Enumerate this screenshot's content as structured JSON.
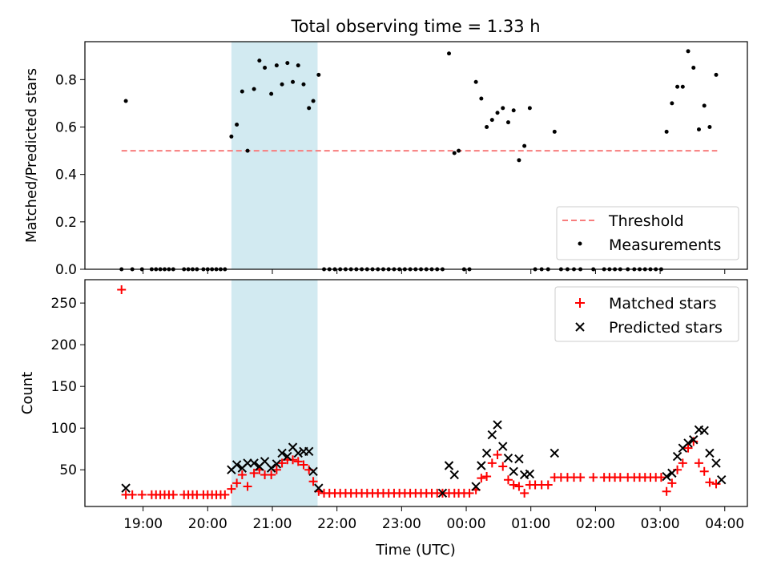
{
  "title": "Total observing time = 1.33 h",
  "colors": {
    "threshold": "#f87d7d",
    "highlight": "#add8e6",
    "measurement": "#000000",
    "matched": "#ff0000",
    "predicted": "#000000"
  },
  "x_ticks": [
    "19:00",
    "20:00",
    "21:00",
    "22:00",
    "23:00",
    "00:00",
    "01:00",
    "02:00",
    "03:00",
    "04:00"
  ],
  "x_tick_hours": [
    19,
    20,
    21,
    22,
    23,
    24,
    25,
    26,
    27,
    28
  ],
  "xlim": [
    18.1,
    28.35
  ],
  "xlabel": "Time (UTC)",
  "highlight_span": {
    "start": "20:22",
    "end": "21:42"
  },
  "chart_data": [
    {
      "type": "scatter",
      "ylabel": "Matched/Predicted stars",
      "ylim": [
        0,
        0.96
      ],
      "yticks": [
        0.0,
        0.2,
        0.4,
        0.6,
        0.8
      ],
      "yticklabels": [
        "0.0",
        "0.2",
        "0.4",
        "0.6",
        "0.8"
      ],
      "legend_position": "lower right",
      "threshold": {
        "name": "Threshold",
        "value": 0.5,
        "x_start": "18:40",
        "x_end": "03:53"
      },
      "series": [
        {
          "name": "Measurements",
          "points": [
            [
              "18:40",
              0.0
            ],
            [
              "18:44",
              0.71
            ],
            [
              "18:50",
              0.0
            ],
            [
              "18:59",
              0.0
            ],
            [
              "19:08",
              0.0
            ],
            [
              "19:12",
              0.0
            ],
            [
              "19:16",
              0.0
            ],
            [
              "19:20",
              0.0
            ],
            [
              "19:24",
              0.0
            ],
            [
              "19:28",
              0.0
            ],
            [
              "19:38",
              0.0
            ],
            [
              "19:42",
              0.0
            ],
            [
              "19:46",
              0.0
            ],
            [
              "19:50",
              0.0
            ],
            [
              "19:56",
              0.0
            ],
            [
              "20:00",
              0.0
            ],
            [
              "20:04",
              0.0
            ],
            [
              "20:08",
              0.0
            ],
            [
              "20:12",
              0.0
            ],
            [
              "20:16",
              0.0
            ],
            [
              "20:22",
              0.56
            ],
            [
              "20:27",
              0.61
            ],
            [
              "20:32",
              0.75
            ],
            [
              "20:37",
              0.5
            ],
            [
              "20:43",
              0.76
            ],
            [
              "20:48",
              0.88
            ],
            [
              "20:53",
              0.85
            ],
            [
              "20:59",
              0.74
            ],
            [
              "21:04",
              0.86
            ],
            [
              "21:09",
              0.78
            ],
            [
              "21:14",
              0.87
            ],
            [
              "21:19",
              0.79
            ],
            [
              "21:24",
              0.86
            ],
            [
              "21:29",
              0.78
            ],
            [
              "21:34",
              0.68
            ],
            [
              "21:38",
              0.71
            ],
            [
              "21:43",
              0.82
            ],
            [
              "21:48",
              0.0
            ],
            [
              "21:53",
              0.0
            ],
            [
              "21:58",
              0.0
            ],
            [
              "22:03",
              0.0
            ],
            [
              "22:08",
              0.0
            ],
            [
              "22:13",
              0.0
            ],
            [
              "22:18",
              0.0
            ],
            [
              "22:23",
              0.0
            ],
            [
              "22:28",
              0.0
            ],
            [
              "22:33",
              0.0
            ],
            [
              "22:38",
              0.0
            ],
            [
              "22:43",
              0.0
            ],
            [
              "22:48",
              0.0
            ],
            [
              "22:53",
              0.0
            ],
            [
              "22:58",
              0.0
            ],
            [
              "23:03",
              0.0
            ],
            [
              "23:08",
              0.0
            ],
            [
              "23:13",
              0.0
            ],
            [
              "23:18",
              0.0
            ],
            [
              "23:23",
              0.0
            ],
            [
              "23:28",
              0.0
            ],
            [
              "23:33",
              0.0
            ],
            [
              "23:38",
              0.0
            ],
            [
              "23:44",
              0.91
            ],
            [
              "23:49",
              0.49
            ],
            [
              "23:53",
              0.5
            ],
            [
              "23:58",
              0.0
            ],
            [
              "00:03",
              0.0
            ],
            [
              "00:09",
              0.79
            ],
            [
              "00:14",
              0.72
            ],
            [
              "00:19",
              0.6
            ],
            [
              "00:24",
              0.63
            ],
            [
              "00:29",
              0.66
            ],
            [
              "00:34",
              0.68
            ],
            [
              "00:39",
              0.62
            ],
            [
              "00:44",
              0.67
            ],
            [
              "00:49",
              0.46
            ],
            [
              "00:54",
              0.52
            ],
            [
              "00:59",
              0.68
            ],
            [
              "01:04",
              0.0
            ],
            [
              "01:10",
              0.0
            ],
            [
              "01:16",
              0.0
            ],
            [
              "01:22",
              0.58
            ],
            [
              "01:28",
              0.0
            ],
            [
              "01:34",
              0.0
            ],
            [
              "01:40",
              0.0
            ],
            [
              "01:46",
              0.0
            ],
            [
              "01:58",
              0.0
            ],
            [
              "02:08",
              0.0
            ],
            [
              "02:13",
              0.0
            ],
            [
              "02:18",
              0.0
            ],
            [
              "02:23",
              0.0
            ],
            [
              "02:30",
              0.0
            ],
            [
              "02:36",
              0.0
            ],
            [
              "02:41",
              0.0
            ],
            [
              "02:46",
              0.0
            ],
            [
              "02:51",
              0.0
            ],
            [
              "02:56",
              0.0
            ],
            [
              "03:01",
              0.0
            ],
            [
              "03:06",
              0.58
            ],
            [
              "03:11",
              0.7
            ],
            [
              "03:16",
              0.77
            ],
            [
              "03:21",
              0.77
            ],
            [
              "03:26",
              0.92
            ],
            [
              "03:31",
              0.85
            ],
            [
              "03:36",
              0.59
            ],
            [
              "03:41",
              0.69
            ],
            [
              "03:46",
              0.6
            ],
            [
              "03:52",
              0.82
            ]
          ]
        }
      ]
    },
    {
      "type": "scatter",
      "ylabel": "Count",
      "ylim": [
        6,
        278
      ],
      "yticks": [
        50,
        100,
        150,
        200,
        250
      ],
      "yticklabels": [
        "50",
        "100",
        "150",
        "200",
        "250"
      ],
      "legend_position": "upper right",
      "series": [
        {
          "name": "Matched stars",
          "points": [
            [
              "18:40",
              266
            ],
            [
              "18:44",
              20
            ],
            [
              "18:50",
              20
            ],
            [
              "18:59",
              20
            ],
            [
              "19:08",
              20
            ],
            [
              "19:12",
              20
            ],
            [
              "19:16",
              20
            ],
            [
              "19:20",
              20
            ],
            [
              "19:24",
              20
            ],
            [
              "19:28",
              20
            ],
            [
              "19:38",
              20
            ],
            [
              "19:42",
              20
            ],
            [
              "19:46",
              20
            ],
            [
              "19:50",
              20
            ],
            [
              "19:56",
              20
            ],
            [
              "20:00",
              20
            ],
            [
              "20:04",
              20
            ],
            [
              "20:08",
              20
            ],
            [
              "20:12",
              20
            ],
            [
              "20:16",
              20
            ],
            [
              "20:22",
              27
            ],
            [
              "20:27",
              34
            ],
            [
              "20:32",
              44
            ],
            [
              "20:37",
              30
            ],
            [
              "20:43",
              46
            ],
            [
              "20:48",
              50
            ],
            [
              "20:53",
              44
            ],
            [
              "20:59",
              44
            ],
            [
              "21:04",
              50
            ],
            [
              "21:09",
              58
            ],
            [
              "21:14",
              62
            ],
            [
              "21:19",
              62
            ],
            [
              "21:24",
              60
            ],
            [
              "21:29",
              56
            ],
            [
              "21:34",
              50
            ],
            [
              "21:38",
              36
            ],
            [
              "21:43",
              24
            ],
            [
              "21:48",
              22
            ],
            [
              "21:53",
              22
            ],
            [
              "21:58",
              22
            ],
            [
              "22:03",
              22
            ],
            [
              "22:08",
              22
            ],
            [
              "22:13",
              22
            ],
            [
              "22:18",
              22
            ],
            [
              "22:23",
              22
            ],
            [
              "22:28",
              22
            ],
            [
              "22:33",
              22
            ],
            [
              "22:38",
              22
            ],
            [
              "22:43",
              22
            ],
            [
              "22:48",
              22
            ],
            [
              "22:53",
              22
            ],
            [
              "22:58",
              22
            ],
            [
              "23:03",
              22
            ],
            [
              "23:08",
              22
            ],
            [
              "23:13",
              22
            ],
            [
              "23:18",
              22
            ],
            [
              "23:23",
              22
            ],
            [
              "23:28",
              22
            ],
            [
              "23:33",
              22
            ],
            [
              "23:38",
              22
            ],
            [
              "23:44",
              22
            ],
            [
              "23:49",
              22
            ],
            [
              "23:53",
              22
            ],
            [
              "23:58",
              22
            ],
            [
              "00:03",
              22
            ],
            [
              "00:09",
              26
            ],
            [
              "00:14",
              40
            ],
            [
              "00:19",
              42
            ],
            [
              "00:24",
              58
            ],
            [
              "00:29",
              68
            ],
            [
              "00:34",
              54
            ],
            [
              "00:39",
              38
            ],
            [
              "00:44",
              32
            ],
            [
              "00:49",
              30
            ],
            [
              "00:54",
              22
            ],
            [
              "00:59",
              32
            ],
            [
              "01:04",
              32
            ],
            [
              "01:10",
              32
            ],
            [
              "01:16",
              32
            ],
            [
              "01:22",
              41
            ],
            [
              "01:28",
              41
            ],
            [
              "01:34",
              41
            ],
            [
              "01:40",
              41
            ],
            [
              "01:46",
              41
            ],
            [
              "01:58",
              41
            ],
            [
              "02:08",
              41
            ],
            [
              "02:13",
              41
            ],
            [
              "02:18",
              41
            ],
            [
              "02:23",
              41
            ],
            [
              "02:30",
              41
            ],
            [
              "02:36",
              41
            ],
            [
              "02:41",
              41
            ],
            [
              "02:46",
              41
            ],
            [
              "02:51",
              41
            ],
            [
              "02:56",
              41
            ],
            [
              "03:01",
              41
            ],
            [
              "03:06",
              24
            ],
            [
              "03:11",
              34
            ],
            [
              "03:16",
              50
            ],
            [
              "03:21",
              58
            ],
            [
              "03:26",
              76
            ],
            [
              "03:31",
              84
            ],
            [
              "03:36",
              58
            ],
            [
              "03:41",
              48
            ],
            [
              "03:46",
              35
            ],
            [
              "03:52",
              33
            ]
          ]
        },
        {
          "name": "Predicted stars",
          "points": [
            [
              "18:44",
              28
            ],
            [
              "20:22",
              50
            ],
            [
              "20:27",
              56
            ],
            [
              "20:32",
              52
            ],
            [
              "20:37",
              58
            ],
            [
              "20:43",
              58
            ],
            [
              "20:48",
              54
            ],
            [
              "20:53",
              60
            ],
            [
              "20:59",
              52
            ],
            [
              "21:04",
              57
            ],
            [
              "21:09",
              70
            ],
            [
              "21:14",
              66
            ],
            [
              "21:19",
              77
            ],
            [
              "21:24",
              70
            ],
            [
              "21:29",
              72
            ],
            [
              "21:34",
              72
            ],
            [
              "21:38",
              48
            ],
            [
              "21:43",
              28
            ],
            [
              "23:38",
              22
            ],
            [
              "23:44",
              55
            ],
            [
              "23:49",
              44
            ],
            [
              "00:09",
              30
            ],
            [
              "00:14",
              55
            ],
            [
              "00:19",
              70
            ],
            [
              "00:24",
              92
            ],
            [
              "00:29",
              104
            ],
            [
              "00:34",
              78
            ],
            [
              "00:39",
              64
            ],
            [
              "00:44",
              48
            ],
            [
              "00:49",
              63
            ],
            [
              "00:54",
              44
            ],
            [
              "00:59",
              45
            ],
            [
              "01:22",
              70
            ],
            [
              "03:06",
              42
            ],
            [
              "03:11",
              46
            ],
            [
              "03:16",
              66
            ],
            [
              "03:21",
              76
            ],
            [
              "03:26",
              82
            ],
            [
              "03:31",
              86
            ],
            [
              "03:36",
              98
            ],
            [
              "03:41",
              97
            ],
            [
              "03:46",
              70
            ],
            [
              "03:52",
              58
            ],
            [
              "03:57",
              38
            ]
          ]
        }
      ]
    }
  ]
}
